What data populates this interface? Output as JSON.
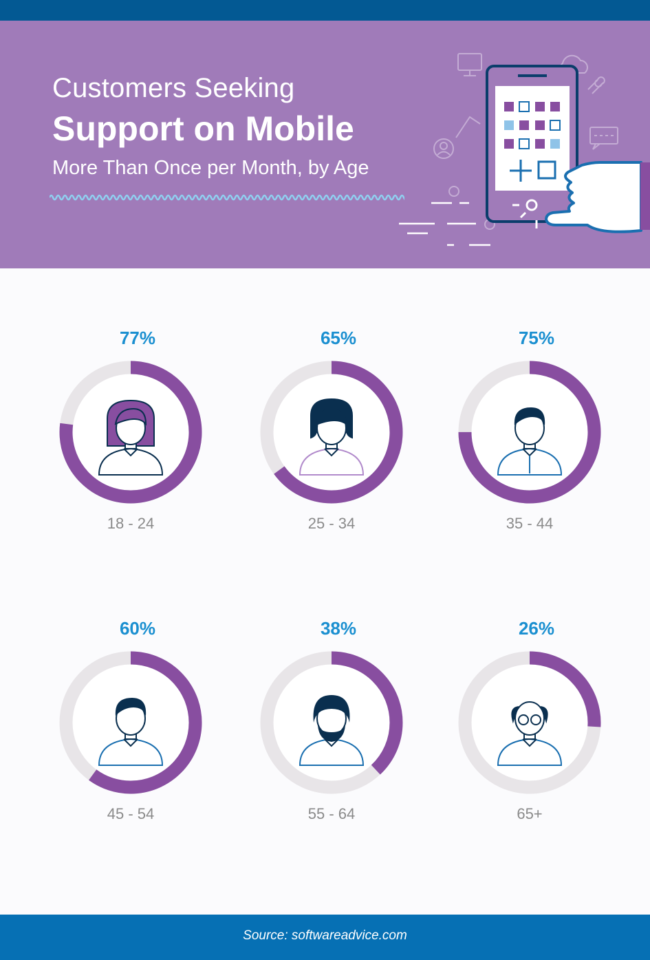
{
  "header": {
    "title_line1": "Customers Seeking",
    "title_line2": "Support on Mobile",
    "subtitle": "More Than Once per Month, by Age"
  },
  "colors": {
    "header_bg": "#a07bb9",
    "top_bar": "#035993",
    "purple": "#884ea0",
    "track": "#e8e5e8",
    "percent_text": "#1a8fd0",
    "footer_bg": "#0670b4"
  },
  "chart_data": {
    "type": "pie",
    "variant": "donut-grid",
    "categories": [
      "18 - 24",
      "25 - 34",
      "35 - 44",
      "45 - 54",
      "55 - 64",
      "65+"
    ],
    "values": [
      77,
      65,
      75,
      60,
      38,
      26
    ],
    "labels": [
      "77%",
      "65%",
      "75%",
      "60%",
      "38%",
      "26%"
    ],
    "icons": [
      "young-woman-icon",
      "woman-icon",
      "man-tie-icon",
      "man-icon",
      "bearded-man-icon",
      "elderly-man-glasses-icon"
    ],
    "value_max": 100
  },
  "footer": {
    "source": "Source: softwareadvice.com"
  }
}
